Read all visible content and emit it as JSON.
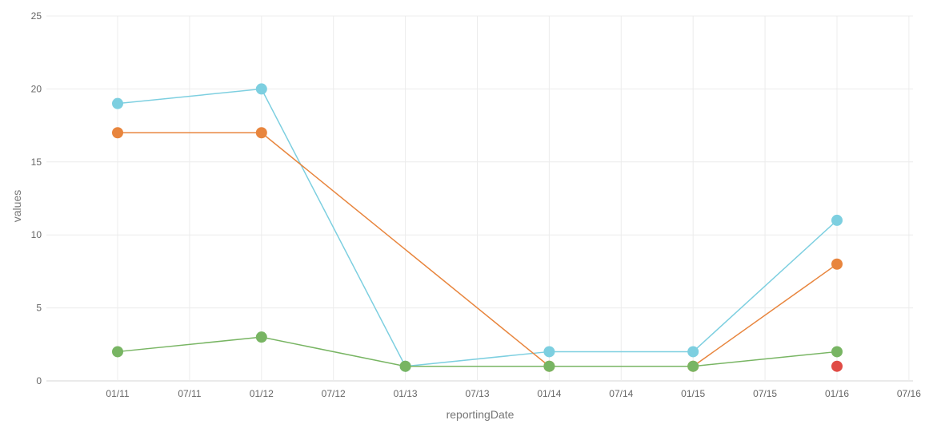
{
  "chart_data": {
    "type": "line",
    "xlabel": "reportingDate",
    "ylabel": "values",
    "ylim": [
      0,
      25
    ],
    "y_ticks": [
      0,
      5,
      10,
      15,
      20,
      25
    ],
    "x_tick_labels": [
      "01/11",
      "07/11",
      "01/12",
      "07/12",
      "01/13",
      "07/13",
      "01/14",
      "07/14",
      "01/15",
      "07/15",
      "01/16",
      "07/16"
    ],
    "x": [
      "01/11",
      "01/12",
      "01/13",
      "01/14",
      "01/15",
      "01/16"
    ],
    "grid": true,
    "legend": "none",
    "series": [
      {
        "color": "#7dcfe0",
        "values": [
          19,
          20,
          1,
          2,
          2,
          11
        ]
      },
      {
        "color": "#e8853d",
        "values": [
          17,
          17,
          null,
          1,
          1,
          8
        ]
      },
      {
        "color": "#78b563",
        "values": [
          2,
          3,
          1,
          1,
          1,
          2
        ]
      },
      {
        "color": "#e04b45",
        "values": [
          null,
          null,
          null,
          null,
          null,
          1
        ]
      }
    ]
  }
}
